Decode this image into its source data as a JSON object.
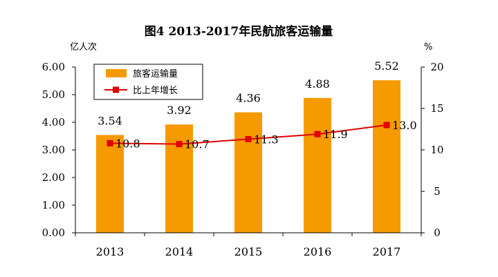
{
  "chart_data": {
    "type": "bar",
    "title": "图4  2013-2017年民航旅客运输量",
    "left_unit": "亿人次",
    "right_unit": "%",
    "categories": [
      "2013",
      "2014",
      "2015",
      "2016",
      "2017"
    ],
    "series": [
      {
        "name": "旅客运输量",
        "type": "bar",
        "axis": "left",
        "values": [
          3.54,
          3.92,
          4.36,
          4.88,
          5.52
        ],
        "labels": [
          "3.54",
          "3.92",
          "4.36",
          "4.88",
          "5.52"
        ],
        "color": "#F59A00"
      },
      {
        "name": "比上年增长",
        "type": "line",
        "axis": "right",
        "values": [
          10.8,
          10.7,
          11.3,
          11.9,
          13.0
        ],
        "labels": [
          "10.8",
          "10.7",
          "11.3",
          "11.9",
          "13.0"
        ],
        "color": "#E00000"
      }
    ],
    "left_axis": {
      "min": 0,
      "max": 6,
      "step": 1,
      "tick_labels": [
        "0.00",
        "1.00",
        "2.00",
        "3.00",
        "4.00",
        "5.00",
        "6.00"
      ]
    },
    "right_axis": {
      "min": 0,
      "max": 20,
      "step": 5,
      "tick_labels": [
        "0",
        "5",
        "10",
        "15",
        "20"
      ]
    },
    "legend_position": "top-left"
  }
}
